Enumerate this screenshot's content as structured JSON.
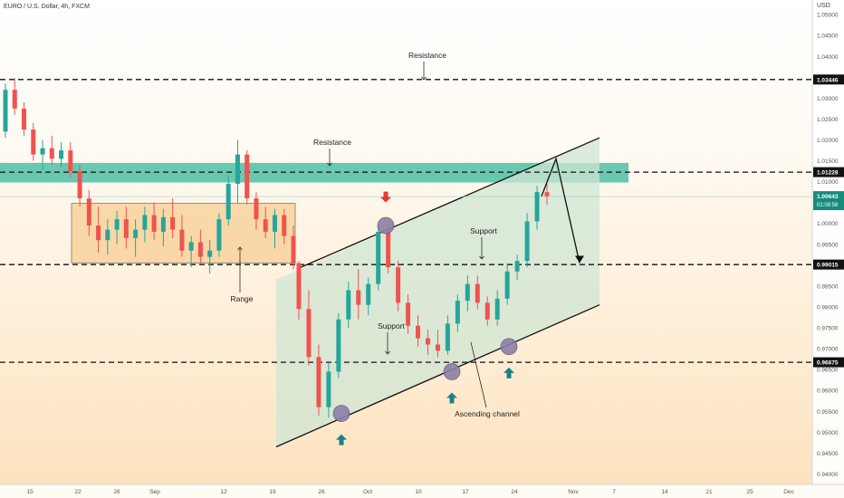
{
  "header": {
    "symbol_line": "EURO / U.S. Dollar, 4h, FXCM",
    "currency": "USD"
  },
  "colors": {
    "candle_up": "#26a69a",
    "candle_down": "#ef5350",
    "resistance_zone": "#4fbfa5",
    "range_box_fill": "#f7c987",
    "range_box_border": "#333333",
    "channel_fill": "#cfe5d3",
    "marker_circle": "#8c7fa6",
    "arrow_up": "#1c7f8a",
    "arrow_down": "#e53935",
    "dashed_line": "#111111",
    "last_price_label_bg": "#168c7f"
  },
  "chart_data": {
    "type": "candlestick",
    "timeframe": "4h",
    "x_tick_labels": [
      "15",
      "22",
      "26",
      "Sep",
      "12",
      "19",
      "26",
      "Oct",
      "10",
      "17",
      "24",
      "Nov",
      "7",
      "14",
      "21",
      "25",
      "Dec"
    ],
    "y_ticks": [
      "1.05000",
      "1.04500",
      "1.04000",
      "1.03500",
      "1.03000",
      "1.02500",
      "1.02000",
      "1.01500",
      "1.01000",
      "1.00500",
      "1.00000",
      "0.99500",
      "0.98500",
      "0.98000",
      "0.97500",
      "0.97000",
      "0.96500",
      "0.96000",
      "0.95500",
      "0.95000",
      "0.94500",
      "0.94000"
    ],
    "ylim": [
      0.9375,
      1.0535
    ],
    "series": [
      {
        "values": [
          [
            1.022,
            1.0335,
            1.0205,
            1.032
          ],
          [
            1.032,
            1.0348,
            1.026,
            1.0275
          ],
          [
            1.0275,
            1.029,
            1.021,
            1.0225
          ],
          [
            1.0225,
            1.024,
            1.015,
            1.0165
          ],
          [
            1.0165,
            1.02,
            1.013,
            1.018
          ],
          [
            1.018,
            1.021,
            1.014,
            1.0155
          ],
          [
            1.0155,
            1.0195,
            1.0135,
            1.0175
          ],
          [
            1.0175,
            1.0195,
            1.011,
            1.0125
          ],
          [
            1.0125,
            1.014,
            1.004,
            1.006
          ],
          [
            1.006,
            1.008,
            0.997,
            0.9995
          ],
          [
            0.9995,
            1.004,
            0.993,
            0.996
          ],
          [
            0.996,
            1.001,
            0.9925,
            0.9985
          ],
          [
            0.9985,
            1.003,
            0.995,
            1.001
          ],
          [
            1.001,
            1.004,
            0.994,
            0.9965
          ],
          [
            0.9965,
            1.001,
            0.992,
            0.9985
          ],
          [
            0.9985,
            1.004,
            0.9955,
            1.002
          ],
          [
            1.002,
            1.005,
            0.996,
            0.998
          ],
          [
            0.998,
            1.0035,
            0.9945,
            1.0015
          ],
          [
            1.0015,
            1.006,
            0.9965,
            0.9985
          ],
          [
            0.9985,
            1.002,
            0.992,
            0.9935
          ],
          [
            0.9935,
            0.997,
            0.9895,
            0.9955
          ],
          [
            0.9955,
            0.9985,
            0.9905,
            0.992
          ],
          [
            0.992,
            0.996,
            0.988,
            0.9935
          ],
          [
            0.9935,
            1.0025,
            0.992,
            1.001
          ],
          [
            1.001,
            1.0115,
            0.9995,
            1.0095
          ],
          [
            1.0095,
            1.02,
            1.005,
            1.0165
          ],
          [
            1.0165,
            1.0175,
            1.0045,
            1.006
          ],
          [
            1.006,
            1.0075,
            0.9985,
            1.001
          ],
          [
            1.001,
            1.004,
            0.9965,
            0.998
          ],
          [
            0.998,
            1.0035,
            0.994,
            1.002
          ],
          [
            1.002,
            1.0035,
            0.995,
            0.997
          ],
          [
            0.997,
            0.9995,
            0.989,
            0.9905
          ],
          [
            0.9905,
            0.991,
            0.977,
            0.9795
          ],
          [
            0.9795,
            0.984,
            0.966,
            0.968
          ],
          [
            0.968,
            0.971,
            0.954,
            0.956
          ],
          [
            0.956,
            0.9665,
            0.9535,
            0.9645
          ],
          [
            0.9645,
            0.9785,
            0.963,
            0.977
          ],
          [
            0.977,
            0.986,
            0.975,
            0.984
          ],
          [
            0.984,
            0.989,
            0.977,
            0.9805
          ],
          [
            0.9805,
            0.987,
            0.978,
            0.9855
          ],
          [
            0.9855,
            0.9995,
            0.984,
            0.998
          ],
          [
            0.998,
            0.9995,
            0.988,
            0.9895
          ],
          [
            0.9895,
            0.991,
            0.979,
            0.981
          ],
          [
            0.981,
            0.983,
            0.9735,
            0.9755
          ],
          [
            0.9755,
            0.978,
            0.9705,
            0.9725
          ],
          [
            0.9725,
            0.9745,
            0.9685,
            0.971
          ],
          [
            0.971,
            0.9745,
            0.968,
            0.9695
          ],
          [
            0.9695,
            0.978,
            0.9685,
            0.976
          ],
          [
            0.976,
            0.983,
            0.974,
            0.9815
          ],
          [
            0.9815,
            0.9875,
            0.979,
            0.9855
          ],
          [
            0.9855,
            0.9875,
            0.9795,
            0.981
          ],
          [
            0.981,
            0.9825,
            0.9755,
            0.977
          ],
          [
            0.977,
            0.984,
            0.9755,
            0.982
          ],
          [
            0.982,
            0.9905,
            0.9805,
            0.9885
          ],
          [
            0.9885,
            0.9925,
            0.9865,
            0.991
          ],
          [
            0.991,
            1.0025,
            0.9895,
            1.0005
          ],
          [
            1.0005,
            1.009,
            0.9985,
            1.0075
          ],
          [
            1.0075,
            1.0095,
            1.0045,
            1.0065
          ]
        ]
      }
    ],
    "horizontal_levels": [
      {
        "value": 1.03446,
        "label": "1.03446"
      },
      {
        "value": 1.01228,
        "label": "1.01228"
      },
      {
        "value": 0.99015,
        "label": "0.99015"
      },
      {
        "value": 0.96675,
        "label": "0.96675"
      }
    ],
    "last_price": {
      "value": 1.00643,
      "label": "1.00643",
      "countdown": "01:08:58"
    },
    "annotations": {
      "resistance_top": "Resistance",
      "resistance_mid": "Resistance",
      "range": "Range",
      "support_upper": "Support",
      "support_lower": "Support",
      "channel": "Ascending channel"
    }
  }
}
